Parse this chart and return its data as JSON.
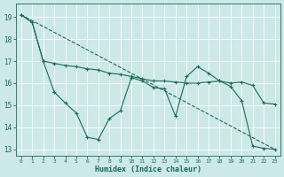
{
  "bg_color": "#cce8e8",
  "grid_color": "#b0d0d0",
  "line_color": "#1a6b5a",
  "xlabel": "Humidex (Indice chaleur)",
  "xlim": [
    -0.5,
    23.5
  ],
  "ylim": [
    12.7,
    19.6
  ],
  "yticks": [
    13,
    14,
    15,
    16,
    17,
    18,
    19
  ],
  "xticks": [
    0,
    1,
    2,
    3,
    4,
    5,
    6,
    7,
    8,
    9,
    10,
    11,
    12,
    13,
    14,
    15,
    16,
    17,
    18,
    19,
    20,
    21,
    22,
    23
  ],
  "line1_x": [
    0,
    1,
    2,
    3,
    4,
    5,
    6,
    7,
    8,
    9,
    10,
    11,
    12,
    13,
    14,
    15,
    16,
    17,
    18,
    19,
    20,
    21,
    22,
    23
  ],
  "line1_y": [
    19.1,
    18.75,
    17.0,
    16.9,
    16.8,
    16.75,
    16.65,
    16.6,
    16.45,
    16.4,
    16.3,
    16.2,
    16.1,
    16.1,
    16.05,
    16.0,
    16.0,
    16.05,
    16.1,
    16.0,
    16.05,
    15.9,
    15.1,
    15.05
  ],
  "line2_x": [
    0,
    1,
    2,
    3,
    4,
    5,
    6,
    7,
    8,
    9,
    10,
    11,
    12,
    13,
    14,
    15,
    16,
    17,
    18,
    19,
    20,
    21,
    22,
    23
  ],
  "line2_y": [
    19.1,
    18.75,
    17.0,
    15.6,
    15.1,
    14.65,
    13.55,
    13.45,
    14.4,
    14.75,
    16.25,
    16.1,
    15.8,
    15.75,
    14.5,
    16.3,
    16.75,
    16.45,
    16.1,
    15.85,
    15.2,
    13.15,
    13.05,
    13.0
  ],
  "line3_x": [
    0,
    23
  ],
  "line3_y": [
    19.1,
    13.0
  ]
}
